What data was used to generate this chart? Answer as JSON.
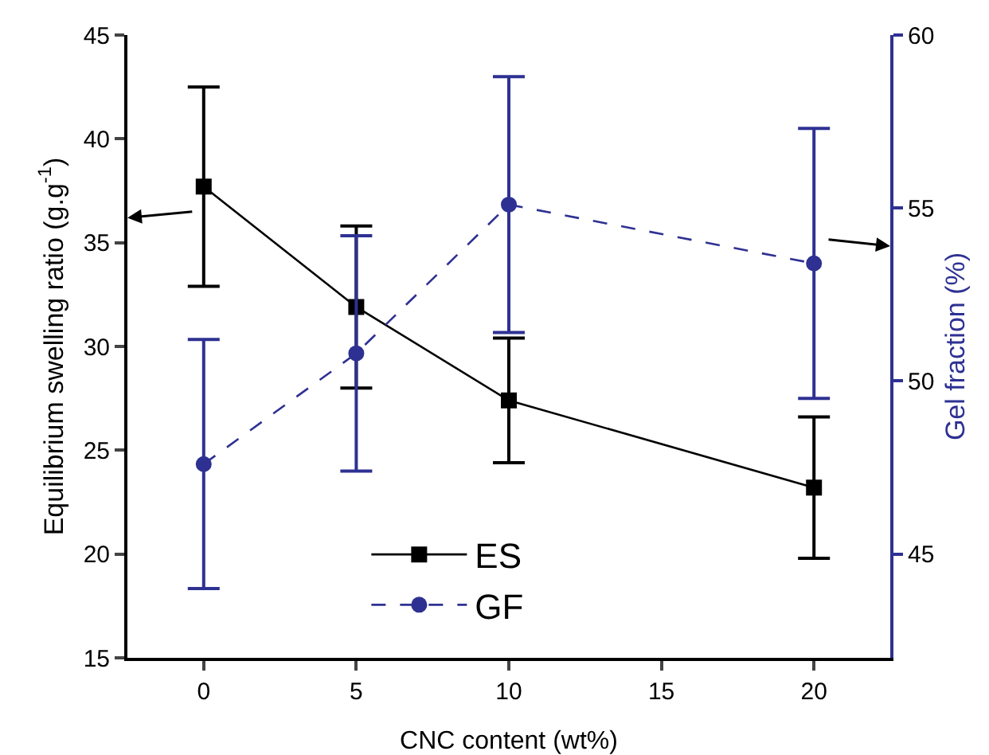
{
  "chart_data": {
    "type": "line",
    "xlabel": "CNC content (wt%)",
    "ylabel": "Equilibrium swelling ratio (g.g$^{-1}$)",
    "y2label": "Gel fraction (%)",
    "x": [
      0,
      5,
      10,
      20
    ],
    "series": [
      {
        "name": "ES",
        "color": "#000000",
        "marker": "square",
        "line_style": "solid",
        "values": [
          37.7,
          31.9,
          27.4,
          23.2
        ],
        "errors": [
          [
            32.9,
            42.5
          ],
          [
            28.0,
            35.8
          ],
          [
            24.4,
            30.4
          ],
          [
            19.8,
            26.6
          ]
        ]
      },
      {
        "name": "GF",
        "color": "#2e3192",
        "marker": "circle",
        "line_style": "dashed",
        "axis": "y2",
        "values": [
          47.6,
          50.8,
          55.1,
          53.4
        ],
        "errors": [
          [
            44.0,
            51.2
          ],
          [
            47.4,
            54.2
          ],
          [
            51.4,
            58.8
          ],
          [
            49.5,
            57.3
          ]
        ]
      }
    ],
    "xlim": [
      -2.5,
      22.5
    ],
    "xticks": [
      0,
      5,
      10,
      15,
      20
    ],
    "ylim": [
      15,
      45
    ],
    "yticks": [
      15,
      20,
      25,
      30,
      35,
      40,
      45
    ],
    "y2lim": [
      42,
      60
    ],
    "y2ticks": [
      45,
      50,
      55,
      60
    ],
    "legend": "bottom",
    "grid": false
  }
}
